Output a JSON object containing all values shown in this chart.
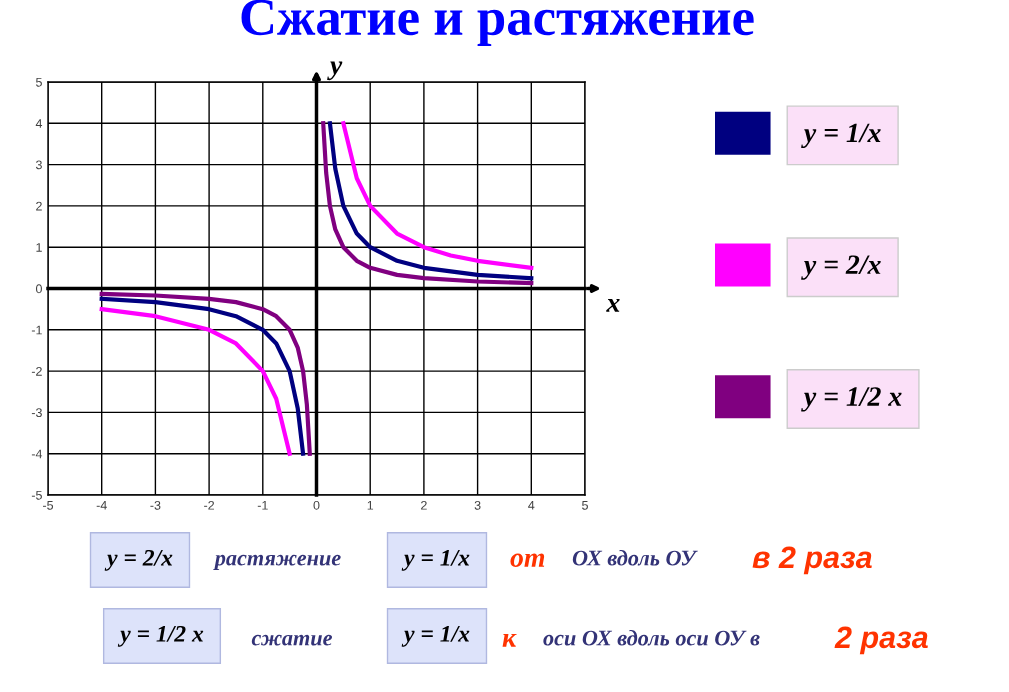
{
  "chart_data": {
    "type": "line",
    "title": "Сжатие и растяжение",
    "xlabel": "x",
    "ylabel": "y",
    "xlim": [
      -5,
      5
    ],
    "ylim": [
      -5,
      5
    ],
    "xticks": [
      -5,
      -4,
      -3,
      -2,
      -1,
      0,
      1,
      2,
      3,
      4,
      5
    ],
    "yticks": [
      -5,
      -4,
      -3,
      -2,
      -1,
      0,
      1,
      2,
      3,
      4,
      5
    ],
    "grid": true,
    "legend": "right",
    "marker": "none",
    "line_style": "solid",
    "series": [
      {
        "name": "y = 1/x",
        "color": "#000080",
        "x": [
          -4,
          -3,
          -2,
          -1.5,
          -1,
          -0.75,
          -0.5,
          -0.35,
          -0.25,
          0,
          0.25,
          0.35,
          0.5,
          0.75,
          1,
          1.5,
          2,
          3,
          4
        ],
        "values": [
          -0.25,
          -0.33,
          -0.5,
          -0.67,
          -1,
          -1.33,
          -2,
          -2.9,
          -4,
          null,
          4,
          2.9,
          2,
          1.33,
          1,
          0.67,
          0.5,
          0.33,
          0.25
        ]
      },
      {
        "name": "y = 2/x",
        "color": "#ff00ff",
        "x": [
          -4,
          -3,
          -2,
          -1.5,
          -1,
          -0.75,
          -0.5,
          0,
          0.5,
          0.75,
          1,
          1.5,
          2,
          2.5,
          3,
          4
        ],
        "values": [
          -0.5,
          -0.67,
          -1,
          -1.33,
          -2,
          -2.67,
          -4,
          null,
          4,
          2.67,
          2,
          1.33,
          1,
          0.8,
          0.67,
          0.5
        ]
      },
      {
        "name": "y = 1/2 x",
        "color": "#800080",
        "x": [
          -4,
          -3,
          -2,
          -1.5,
          -1,
          -0.75,
          -0.5,
          -0.35,
          -0.25,
          -0.18,
          -0.125,
          0,
          0.125,
          0.18,
          0.25,
          0.35,
          0.5,
          0.75,
          1,
          1.5,
          2,
          3,
          4
        ],
        "values": [
          -0.13,
          -0.17,
          -0.25,
          -0.33,
          -0.5,
          -0.67,
          -1,
          -1.43,
          -2,
          -2.8,
          -4,
          null,
          4,
          2.8,
          2,
          1.43,
          1,
          0.67,
          0.5,
          0.33,
          0.25,
          0.17,
          0.13
        ]
      }
    ],
    "annotations": [
      "y = 2/x",
      "растяжение",
      "y = 1/x",
      "от",
      "ОХ вдоль ОУ",
      "в 2 раза",
      "y = 1/2 x",
      "сжатие",
      "y = 1/x",
      "к",
      "оси ОХ вдоль оси ОУ в",
      "2 раза"
    ]
  }
}
